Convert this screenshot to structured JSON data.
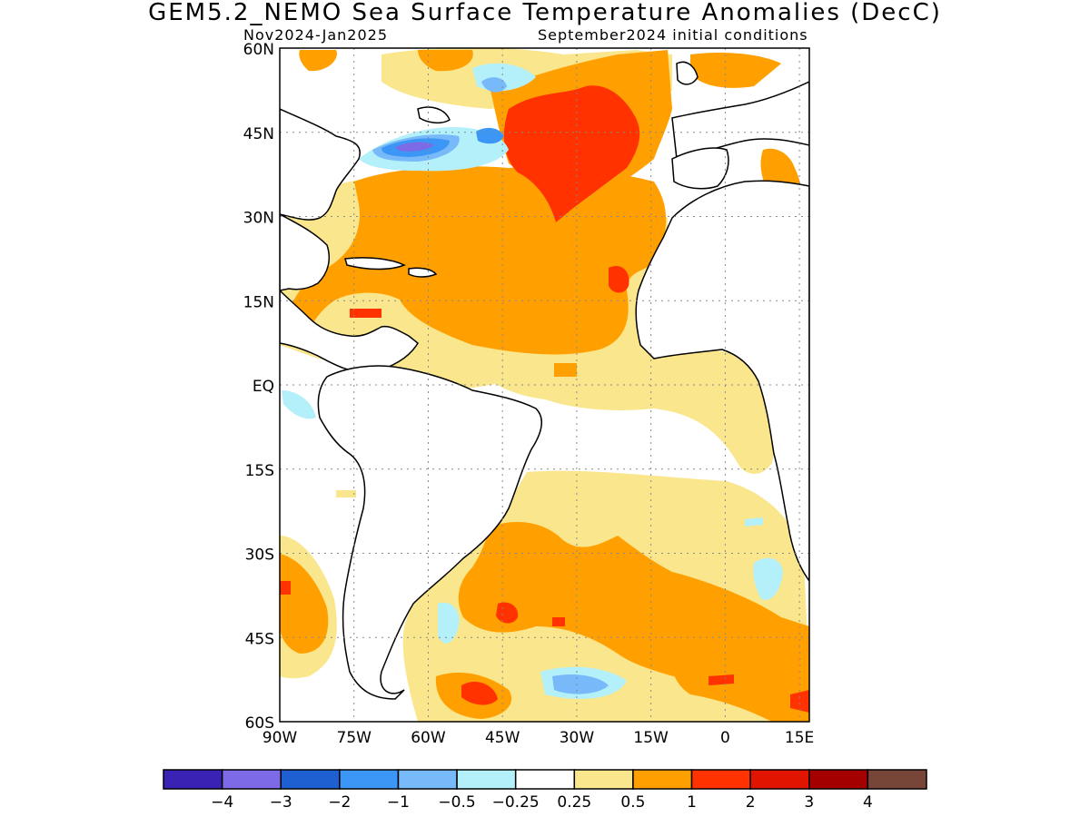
{
  "header": {
    "title": "GEM5.2_NEMO Sea Surface Temperature Anomalies (DecC)",
    "period": "Nov2024-Jan2025",
    "init": "September2024 initial conditions"
  },
  "map": {
    "lat_labels": [
      "60N",
      "45N",
      "30N",
      "15N",
      "EQ",
      "15S",
      "30S",
      "45S",
      "60S"
    ],
    "lon_labels": [
      "90W",
      "75W",
      "60W",
      "45W",
      "30W",
      "15W",
      "0",
      "15E"
    ],
    "lat_range": [
      -60,
      60
    ],
    "lon_range": [
      -90,
      17
    ]
  },
  "colorbar": {
    "tick_labels": [
      "-4",
      "-3",
      "-2",
      "-1",
      "-0.5",
      "-0.25",
      "0.25",
      "0.5",
      "1",
      "2",
      "3",
      "4"
    ],
    "colors": [
      "#3a22b4",
      "#7d6ae6",
      "#1e5fd2",
      "#3c96f5",
      "#78b9fa",
      "#b4f0fa",
      "#ffffff",
      "#fae68c",
      "#ffa000",
      "#ff3200",
      "#e11400",
      "#a50000",
      "#784638"
    ]
  }
}
